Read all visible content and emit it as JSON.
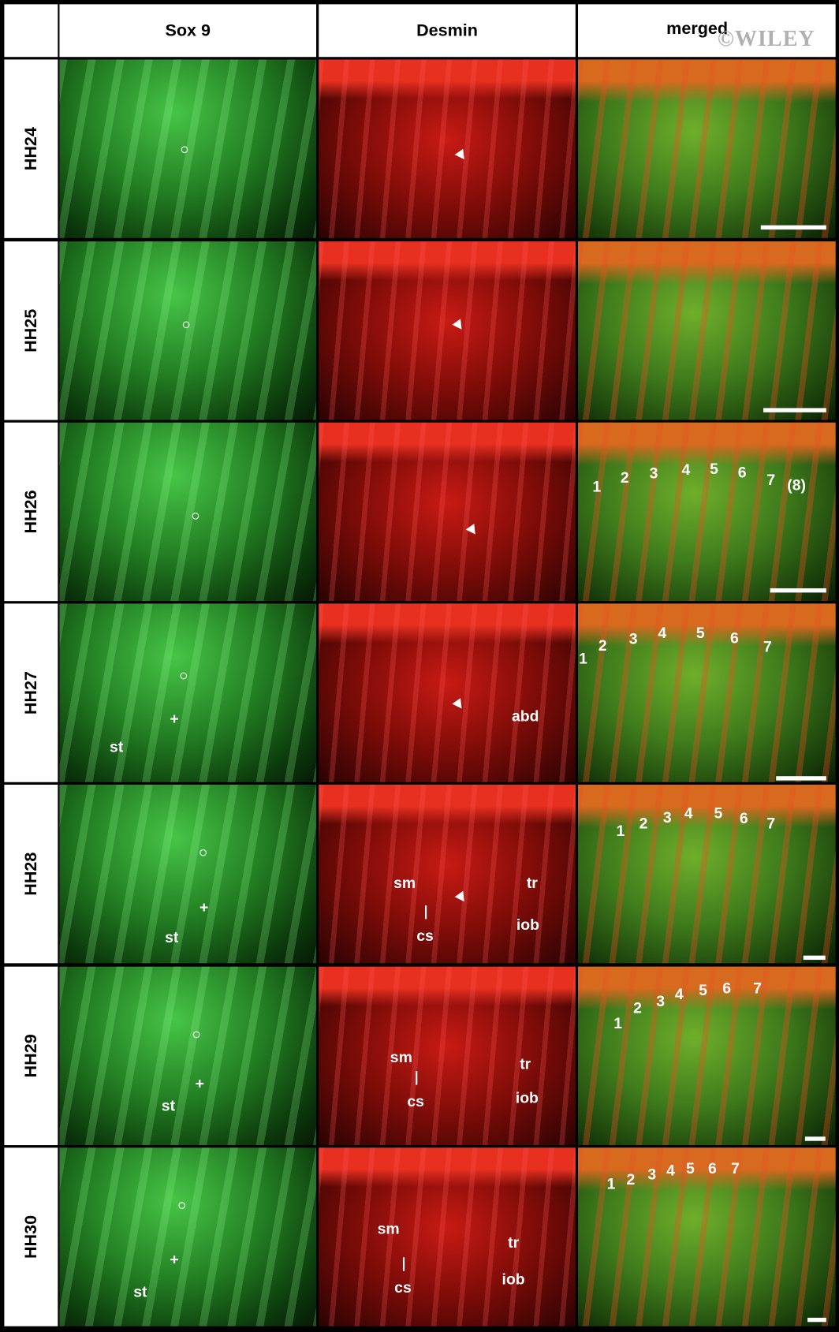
{
  "header": {
    "columns": [
      "Sox 9",
      "Desmin",
      "merged"
    ],
    "watermark": "©WILEY"
  },
  "rows": [
    {
      "label": "HH24",
      "panels": [
        [],
        [],
        []
      ]
    },
    {
      "label": "HH25",
      "panels": [
        [],
        [],
        []
      ]
    },
    {
      "label": "HH26",
      "panels": [
        [],
        [],
        [
          "1",
          "2",
          "3",
          "4",
          "5",
          "6",
          "7",
          "(8)"
        ]
      ]
    },
    {
      "label": "HH27",
      "panels": [
        [
          "+",
          "st"
        ],
        [
          "abd"
        ],
        [
          "1",
          "2",
          "3",
          "4",
          "5",
          "6",
          "7"
        ]
      ]
    },
    {
      "label": "HH28",
      "panels": [
        [
          "+",
          "st"
        ],
        [
          "sm",
          "cs",
          "tr",
          "iob"
        ],
        [
          "1",
          "2",
          "3",
          "4",
          "5",
          "6",
          "7"
        ]
      ]
    },
    {
      "label": "HH29",
      "panels": [
        [
          "+",
          "st"
        ],
        [
          "sm",
          "cs",
          "tr",
          "iob"
        ],
        [
          "1",
          "2",
          "3",
          "4",
          "5",
          "6",
          "7"
        ]
      ]
    },
    {
      "label": "HH30",
      "panels": [
        [
          "+",
          "st"
        ],
        [
          "sm",
          "cs",
          "tr",
          "iob"
        ],
        [
          "1",
          "2",
          "3",
          "4",
          "5",
          "6",
          "7"
        ]
      ]
    }
  ]
}
